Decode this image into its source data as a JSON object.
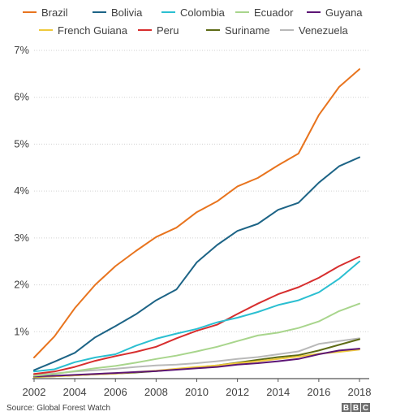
{
  "source": "Source: Global Forest Watch",
  "logo_letters": [
    "B",
    "B",
    "C"
  ],
  "chart_data": {
    "type": "line",
    "title": "",
    "xlabel": "",
    "ylabel": "",
    "x": [
      2002,
      2003,
      2004,
      2005,
      2006,
      2007,
      2008,
      2009,
      2010,
      2011,
      2012,
      2013,
      2014,
      2015,
      2016,
      2017,
      2018
    ],
    "x_ticks": [
      "2002",
      "2004",
      "2006",
      "2008",
      "2010",
      "2012",
      "2014",
      "2016",
      "2018"
    ],
    "y_ticks": [
      "1%",
      "2%",
      "3%",
      "4%",
      "5%",
      "6%",
      "7%"
    ],
    "ylim": [
      0,
      7
    ],
    "xlim": [
      2002,
      2018
    ],
    "grid": true,
    "legend_position": "top",
    "series": [
      {
        "name": "Brazil",
        "color": "#e8741e",
        "values": [
          0.45,
          0.9,
          1.5,
          2.0,
          2.4,
          2.72,
          3.02,
          3.22,
          3.55,
          3.78,
          4.1,
          4.28,
          4.55,
          4.8,
          5.62,
          6.22,
          6.6
        ]
      },
      {
        "name": "Bolivia",
        "color": "#1d6486",
        "values": [
          0.18,
          0.36,
          0.55,
          0.88,
          1.12,
          1.37,
          1.67,
          1.9,
          2.48,
          2.85,
          3.15,
          3.3,
          3.6,
          3.75,
          4.18,
          4.53,
          4.72
        ]
      },
      {
        "name": "Colombia",
        "color": "#2bbfd1",
        "values": [
          0.15,
          0.2,
          0.35,
          0.45,
          0.52,
          0.7,
          0.85,
          0.96,
          1.06,
          1.2,
          1.3,
          1.42,
          1.57,
          1.67,
          1.84,
          2.13,
          2.5
        ]
      },
      {
        "name": "Ecuador",
        "color": "#a8d58c",
        "values": [
          0.06,
          0.1,
          0.16,
          0.22,
          0.27,
          0.34,
          0.42,
          0.49,
          0.58,
          0.68,
          0.8,
          0.92,
          0.98,
          1.08,
          1.22,
          1.44,
          1.6
        ]
      },
      {
        "name": "Guyana",
        "color": "#5c1575",
        "values": [
          0.05,
          0.06,
          0.08,
          0.1,
          0.12,
          0.14,
          0.16,
          0.19,
          0.22,
          0.25,
          0.3,
          0.33,
          0.37,
          0.42,
          0.52,
          0.6,
          0.64
        ]
      },
      {
        "name": "French Guiana",
        "color": "#efc93c",
        "values": [
          0.04,
          0.05,
          0.07,
          0.09,
          0.11,
          0.14,
          0.17,
          0.21,
          0.25,
          0.28,
          0.33,
          0.37,
          0.42,
          0.47,
          0.53,
          0.57,
          0.62
        ]
      },
      {
        "name": "Peru",
        "color": "#d72e2e",
        "values": [
          0.1,
          0.15,
          0.25,
          0.38,
          0.48,
          0.57,
          0.68,
          0.86,
          1.02,
          1.15,
          1.38,
          1.6,
          1.8,
          1.95,
          2.15,
          2.4,
          2.6
        ]
      },
      {
        "name": "Suriname",
        "color": "#5e6b16",
        "values": [
          0.03,
          0.05,
          0.07,
          0.09,
          0.11,
          0.13,
          0.16,
          0.2,
          0.24,
          0.28,
          0.34,
          0.4,
          0.46,
          0.5,
          0.6,
          0.72,
          0.84
        ]
      },
      {
        "name": "Venezuela",
        "color": "#b9b9b9",
        "values": [
          0.08,
          0.11,
          0.15,
          0.18,
          0.21,
          0.25,
          0.28,
          0.3,
          0.33,
          0.37,
          0.42,
          0.46,
          0.52,
          0.58,
          0.74,
          0.8,
          0.86
        ]
      }
    ]
  }
}
